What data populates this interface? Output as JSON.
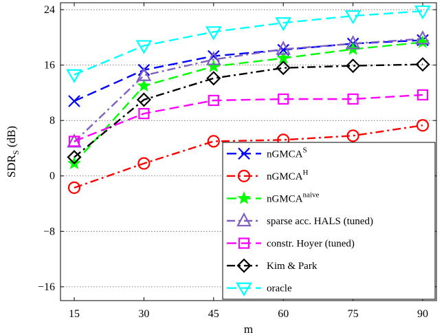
{
  "chart_data": {
    "type": "line",
    "xlabel": "m",
    "ylabel": "SDR",
    "ylabel_subscript": "S",
    "ylabel_unit": "(dB)",
    "x": [
      15,
      30,
      45,
      60,
      75,
      90
    ],
    "xlim": [
      15,
      90
    ],
    "ylim": [
      -18,
      25
    ],
    "xticks": [
      "15",
      "30",
      "45",
      "60",
      "75",
      "90"
    ],
    "yticks": [
      24,
      16,
      8,
      0,
      -8,
      -16
    ],
    "ytick_labels": [
      "24",
      "16",
      "8",
      "0",
      "−8",
      "−16"
    ],
    "grid": "horizontal dotted",
    "legend_position": "bottom-right",
    "series": [
      {
        "name": "nGMCA",
        "name_sup": "S",
        "color": "#0000ff",
        "dash": "dashed",
        "marker": "x",
        "values": [
          10.8,
          15.3,
          17.3,
          18.2,
          19.1,
          19.6
        ]
      },
      {
        "name": "nGMCA",
        "name_sup": "H",
        "color": "#ff0000",
        "dash": "dashdot",
        "marker": "circle",
        "values": [
          -1.7,
          1.8,
          5.0,
          5.2,
          5.8,
          7.3
        ]
      },
      {
        "name": "nGMCA",
        "name_sup": "naive",
        "color": "#00ff00",
        "dash": "dashed",
        "marker": "star",
        "values": [
          1.8,
          13.0,
          15.8,
          17.0,
          18.3,
          19.3
        ]
      },
      {
        "name": "sparse acc. HALS (tuned)",
        "name_sup": "",
        "color": "#7f5fbf",
        "dash": "dashdot",
        "marker": "triangle-up",
        "values": [
          4.9,
          14.5,
          16.8,
          18.3,
          19.1,
          19.8
        ]
      },
      {
        "name": "constr. Hoyer (tuned)",
        "name_sup": "",
        "color": "#ff00ff",
        "dash": "dashed",
        "marker": "square",
        "values": [
          5.0,
          9.0,
          10.9,
          11.1,
          11.1,
          11.7
        ]
      },
      {
        "name": "Kim & Park",
        "name_sup": "",
        "color": "#000000",
        "dash": "dashdot",
        "marker": "diamond",
        "values": [
          2.7,
          11.0,
          14.1,
          15.6,
          15.9,
          16.1
        ]
      },
      {
        "name": "oracle",
        "name_sup": "",
        "color": "#00ffff",
        "dash": "dashed",
        "marker": "triangle-down",
        "values": [
          14.6,
          18.8,
          20.8,
          22.1,
          23.1,
          23.8
        ]
      }
    ]
  }
}
